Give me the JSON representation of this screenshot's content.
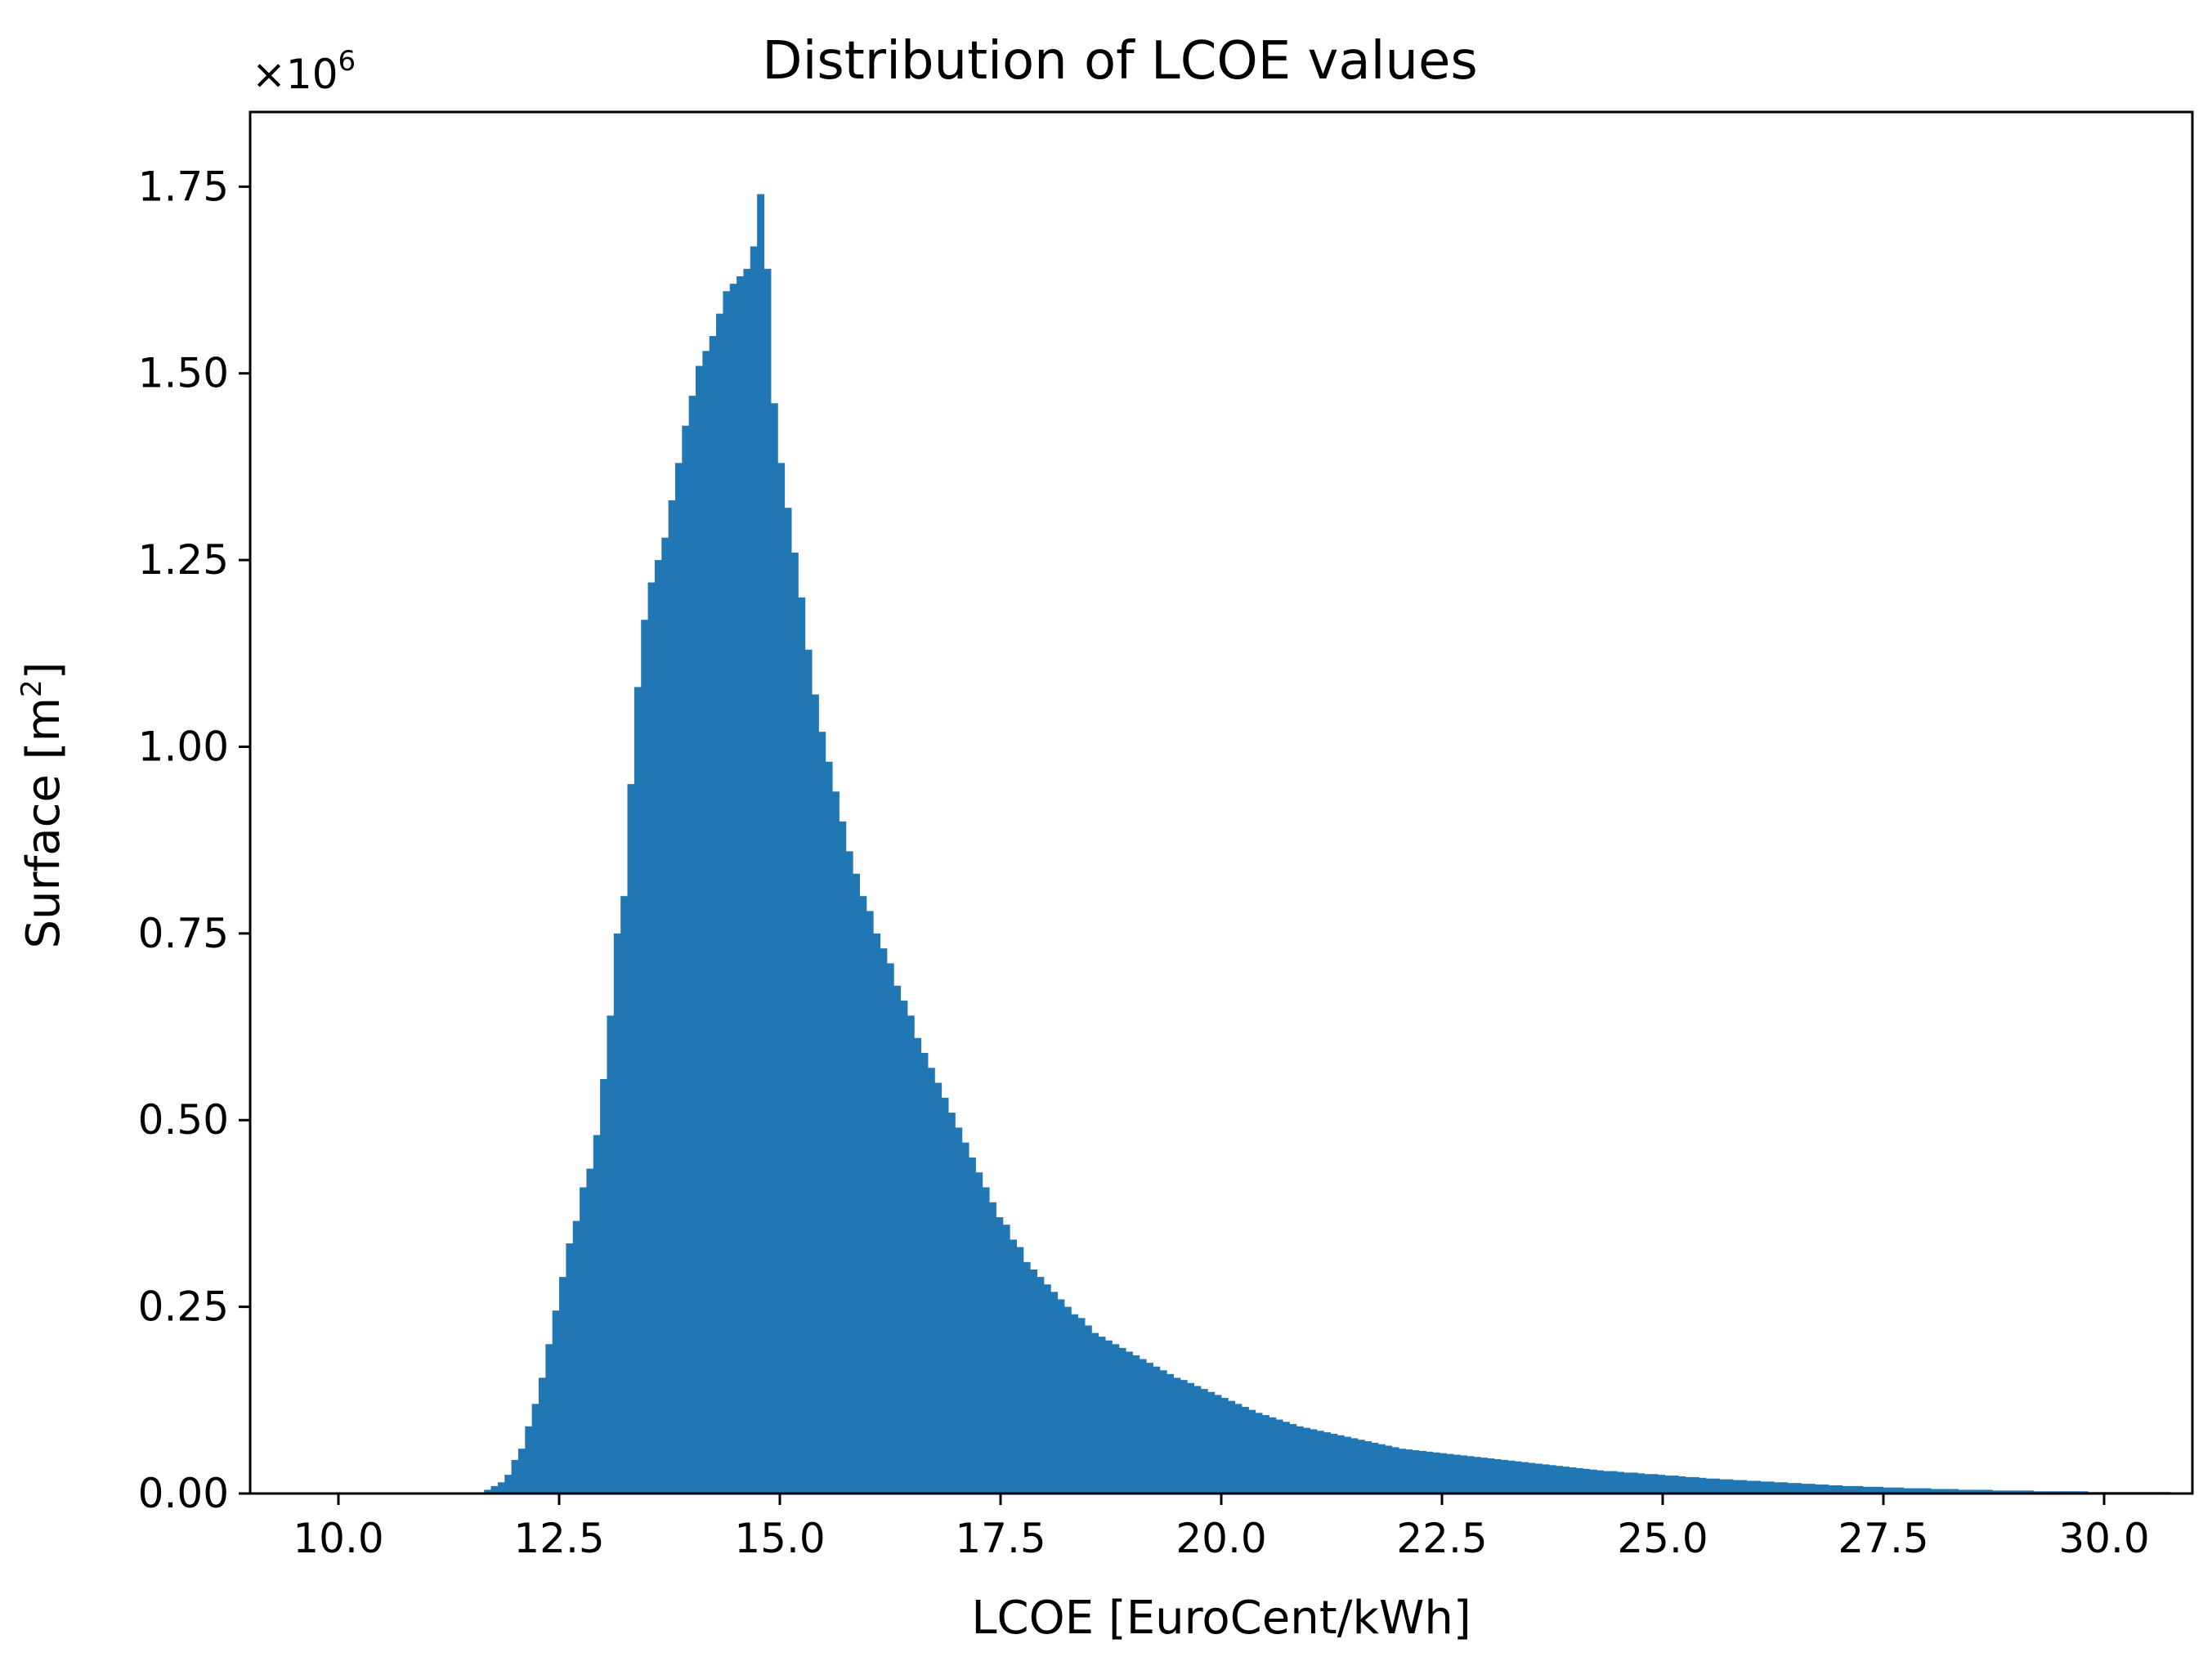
{
  "chart_data": {
    "type": "bar",
    "title": "Distribution of LCOE values",
    "xlabel": "LCOE [EuroCent/kWh]",
    "ylabel": "Surface [m2]",
    "ylabel_base": "Surface [m",
    "ylabel_sup": "2",
    "ylabel_close": "]",
    "y_offset_label": "×10",
    "y_offset_exp": "6",
    "xlim": [
      9.0,
      31.0
    ],
    "ylim": [
      0.0,
      1.85
    ],
    "xticks": [
      10.0,
      12.5,
      15.0,
      17.5,
      20.0,
      22.5,
      25.0,
      27.5,
      30.0
    ],
    "xtick_labels": [
      "10.0",
      "12.5",
      "15.0",
      "17.5",
      "20.0",
      "22.5",
      "25.0",
      "27.5",
      "30.0"
    ],
    "yticks": [
      0.0,
      0.25,
      0.5,
      0.75,
      1.0,
      1.25,
      1.5,
      1.75
    ],
    "ytick_labels": [
      "0.00",
      "0.25",
      "0.50",
      "0.75",
      "1.00",
      "1.25",
      "1.50",
      "1.75"
    ],
    "bin_start": 11.65,
    "bin_width": 0.0773,
    "values": [
      0.005,
      0.01,
      0.015,
      0.025,
      0.045,
      0.06,
      0.09,
      0.12,
      0.155,
      0.2,
      0.245,
      0.29,
      0.335,
      0.365,
      0.41,
      0.435,
      0.48,
      0.555,
      0.64,
      0.75,
      0.8,
      0.95,
      1.08,
      1.17,
      1.22,
      1.25,
      1.28,
      1.33,
      1.38,
      1.43,
      1.47,
      1.51,
      1.53,
      1.55,
      1.58,
      1.61,
      1.62,
      1.63,
      1.64,
      1.67,
      1.74,
      1.64,
      1.46,
      1.38,
      1.32,
      1.26,
      1.2,
      1.13,
      1.07,
      1.02,
      0.98,
      0.94,
      0.9,
      0.86,
      0.83,
      0.8,
      0.78,
      0.75,
      0.73,
      0.71,
      0.68,
      0.66,
      0.64,
      0.61,
      0.59,
      0.57,
      0.55,
      0.53,
      0.51,
      0.49,
      0.47,
      0.45,
      0.43,
      0.41,
      0.39,
      0.37,
      0.36,
      0.34,
      0.33,
      0.31,
      0.3,
      0.29,
      0.28,
      0.27,
      0.26,
      0.25,
      0.24,
      0.235,
      0.225,
      0.215,
      0.21,
      0.205,
      0.2,
      0.195,
      0.19,
      0.185,
      0.18,
      0.175,
      0.17,
      0.165,
      0.16,
      0.155,
      0.152,
      0.148,
      0.144,
      0.14,
      0.136,
      0.132,
      0.128,
      0.124,
      0.12,
      0.116,
      0.112,
      0.108,
      0.105,
      0.102,
      0.099,
      0.096,
      0.093,
      0.09,
      0.088,
      0.086,
      0.084,
      0.082,
      0.08,
      0.078,
      0.076,
      0.074,
      0.072,
      0.07,
      0.068,
      0.066,
      0.064,
      0.062,
      0.06,
      0.059,
      0.058,
      0.057,
      0.056,
      0.055,
      0.054,
      0.053,
      0.052,
      0.051,
      0.05,
      0.049,
      0.048,
      0.047,
      0.046,
      0.045,
      0.044,
      0.043,
      0.042,
      0.041,
      0.04,
      0.039,
      0.038,
      0.037,
      0.036,
      0.035,
      0.034,
      0.033,
      0.032,
      0.031,
      0.03,
      0.03,
      0.029,
      0.028,
      0.028,
      0.027,
      0.026,
      0.026,
      0.025,
      0.024,
      0.024,
      0.023,
      0.022,
      0.022,
      0.021,
      0.02,
      0.02,
      0.019,
      0.019,
      0.018,
      0.018,
      0.017,
      0.017,
      0.016,
      0.016,
      0.015,
      0.015,
      0.014,
      0.014,
      0.013,
      0.013,
      0.012,
      0.012,
      0.011,
      0.011,
      0.01,
      0.01,
      0.01,
      0.009,
      0.009,
      0.009,
      0.008,
      0.008,
      0.008,
      0.007,
      0.007,
      0.007,
      0.007,
      0.006,
      0.006,
      0.006,
      0.006,
      0.005,
      0.005,
      0.005,
      0.005,
      0.005,
      0.004,
      0.004,
      0.004,
      0.004,
      0.004,
      0.004,
      0.003,
      0.003,
      0.003,
      0.003,
      0.003,
      0.003,
      0.003,
      0.003,
      0.002,
      0.002,
      0.002,
      0.002,
      0.002,
      0.002,
      0.002,
      0.002,
      0.002,
      0.002,
      0.002,
      0.002
    ],
    "bar_color": "#2077b4",
    "grid": false,
    "legend": "none"
  }
}
